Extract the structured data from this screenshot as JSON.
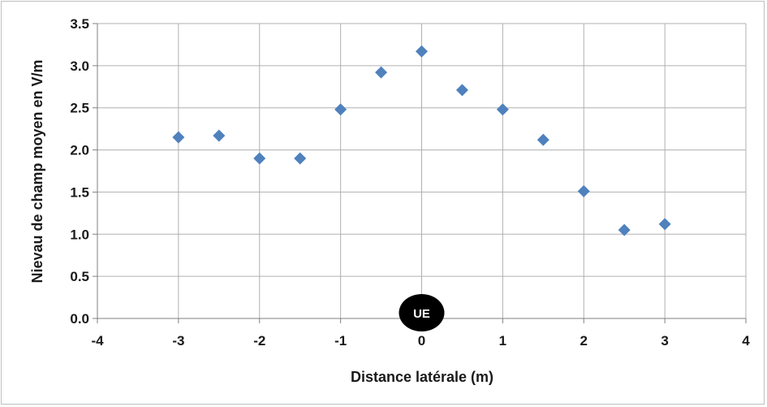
{
  "chart_data": {
    "type": "scatter",
    "xlabel": "Distance latérale (m)",
    "ylabel": "Nievau de champ moyen en V/m",
    "xlim": [
      -4,
      4
    ],
    "ylim": [
      0,
      3.5
    ],
    "x_ticks": [
      "-4",
      "-3",
      "-2",
      "-1",
      "0",
      "1",
      "2",
      "3",
      "4"
    ],
    "y_ticks": [
      "0.0",
      "0.5",
      "1.0",
      "1.5",
      "2.0",
      "2.5",
      "3.0",
      "3.5"
    ],
    "grid": true,
    "series": [
      {
        "x": [
          -3,
          -2.5,
          -2,
          -1.5,
          -1,
          -0.5,
          0,
          0.5,
          1,
          1.5,
          2,
          2.5,
          3
        ],
        "y": [
          2.15,
          2.17,
          1.9,
          1.9,
          2.48,
          2.92,
          3.17,
          2.71,
          2.48,
          2.12,
          1.51,
          1.05,
          1.12
        ],
        "color": "#4f81bd",
        "marker": "diamond"
      }
    ],
    "annotations": [
      {
        "text": "UE",
        "x": 0,
        "y": 0,
        "shape": "ellipse",
        "fill": "#000000"
      }
    ]
  }
}
